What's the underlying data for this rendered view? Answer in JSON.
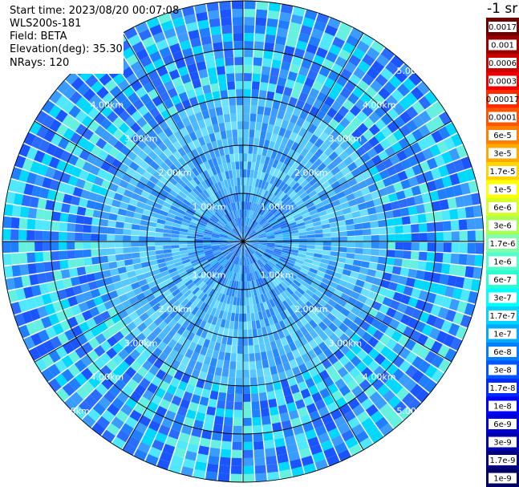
{
  "header": {
    "start_time": "Start time: 2023/08/20 00:07:08",
    "instrument": "WLS200s-181",
    "field": "Field: BETA",
    "elevation": "Elevation(deg): 35.30",
    "nrays": "NRays: 120"
  },
  "colorbar": {
    "unit_label": "-1 sr",
    "levels": [
      "0.0017",
      "0.001",
      "0.0006",
      "0.0003",
      "0.00017",
      "0.0001",
      "6e-5",
      "3e-5",
      "1.7e-5",
      "1e-5",
      "6e-6",
      "3e-6",
      "1.7e-6",
      "1e-6",
      "6e-7",
      "3e-7",
      "1.7e-7",
      "1e-7",
      "6e-8",
      "3e-8",
      "1.7e-8",
      "1e-8",
      "6e-9",
      "3e-9",
      "1.7e-9",
      "1e-9"
    ],
    "colors": [
      "#6a0000",
      "#9a0000",
      "#c80000",
      "#ee0000",
      "#ff2a00",
      "#ff5500",
      "#ff8000",
      "#ffaa00",
      "#ffd400",
      "#ffff00",
      "#d4ff2a",
      "#aaff55",
      "#80ffaa",
      "#55ffcc",
      "#2affd4",
      "#00ffff",
      "#00d4ff",
      "#00aaff",
      "#0080ff",
      "#0055ff",
      "#002aff",
      "#0000ff",
      "#0000d4",
      "#0000aa",
      "#000080",
      "#000060"
    ]
  },
  "chart_data": {
    "type": "heatmap",
    "projection": "polar (PPI scan)",
    "field": "BETA",
    "nrays": 120,
    "elevation_deg": 35.3,
    "range_rings_km": [
      1,
      2,
      3,
      4,
      5
    ],
    "range_ring_labels": [
      "1.00km",
      "2.00km",
      "3.00km",
      "4.00km",
      "5.00km"
    ],
    "max_range_km": 5.0,
    "spoke_angles_deg": [
      0,
      30,
      60,
      90,
      120,
      150,
      180,
      210,
      240,
      270,
      300,
      330
    ],
    "typical_values": {
      "inner_1km": "1e-6 to 3e-7",
      "mid_2km": "1e-7 to 3e-8",
      "outer_5km": "1e-8 to 3e-7"
    }
  }
}
